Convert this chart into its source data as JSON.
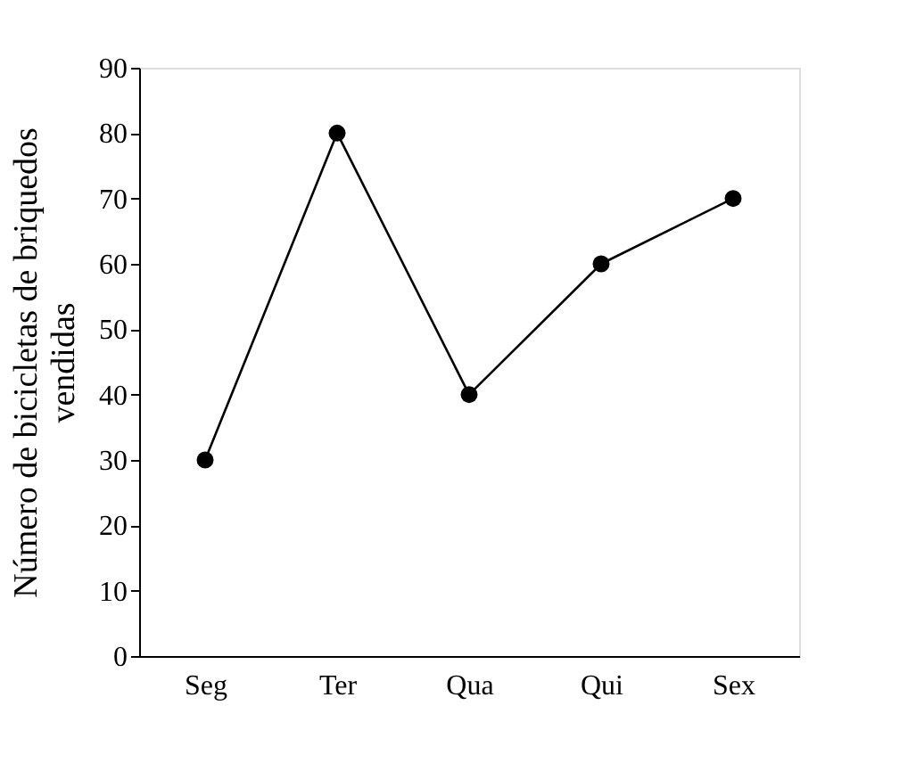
{
  "chart_data": {
    "type": "line",
    "ylabel": "Número de bicicletas de briquedos vendidas",
    "categories": [
      "Seg",
      "Ter",
      "Qua",
      "Qui",
      "Sex"
    ],
    "series": [
      {
        "color": "#000000",
        "values": [
          30,
          80,
          40,
          60,
          70
        ]
      }
    ],
    "ylim": [
      0,
      90
    ],
    "yticks": [
      0,
      10,
      20,
      30,
      40,
      50,
      60,
      70,
      80,
      90
    ],
    "grid": false,
    "legend": false,
    "marker": "circle",
    "line_style": "solid"
  }
}
